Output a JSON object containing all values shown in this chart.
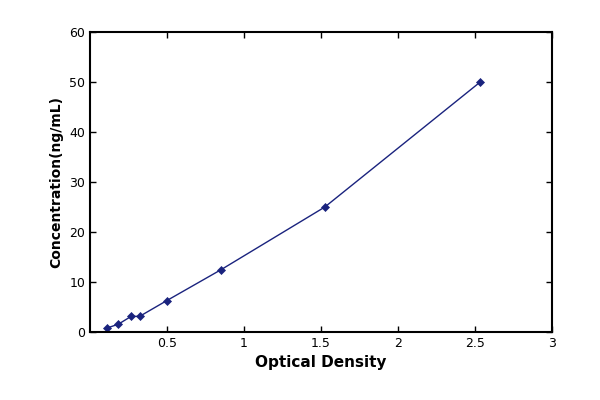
{
  "x_data": [
    0.109,
    0.184,
    0.267,
    0.322,
    0.497,
    0.853,
    1.525,
    2.534
  ],
  "y_data": [
    0.78,
    1.56,
    3.125,
    3.125,
    6.25,
    12.5,
    25.0,
    50.0
  ],
  "line_color": "#1a237e",
  "marker_color": "#1a237e",
  "marker_style": "D",
  "marker_size": 4,
  "line_width": 1.0,
  "xlabel": "Optical Density",
  "ylabel": "Concentration(ng/mL)",
  "xlim": [
    0.0,
    3.0
  ],
  "ylim": [
    0,
    60
  ],
  "xticks": [
    0.5,
    1,
    1.5,
    2,
    2.5,
    3
  ],
  "xticklabels": [
    "0.5",
    "1",
    "1.5",
    "2",
    "2.5",
    "3"
  ],
  "yticks": [
    0,
    10,
    20,
    30,
    40,
    50,
    60
  ],
  "yticklabels": [
    "0",
    "10",
    "20",
    "30",
    "40",
    "50",
    "60"
  ],
  "xlabel_fontsize": 11,
  "ylabel_fontsize": 10,
  "tick_fontsize": 9,
  "figure_background": "#ffffff",
  "axes_background": "#ffffff",
  "border_color": "#000000",
  "border_linewidth": 1.5
}
